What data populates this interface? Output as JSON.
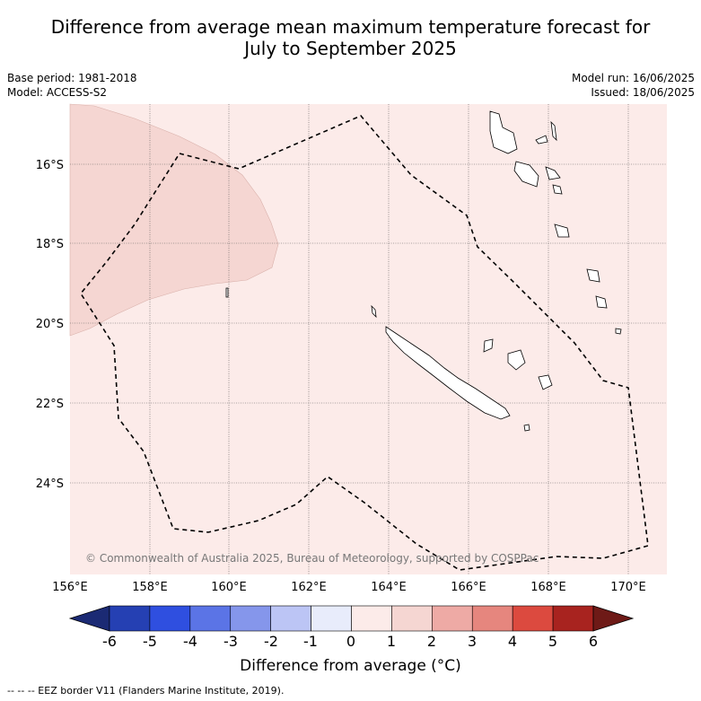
{
  "title_line1": "Difference from average mean maximum temperature forecast for",
  "title_line2": "July to September 2025",
  "base_period": "Base period: 1981-2018",
  "model": "Model: ACCESS-S2",
  "model_run": "Model run: 16/06/2025",
  "issued": "Issued: 18/06/2025",
  "lat_labels": [
    "16°S",
    "18°S",
    "20°S",
    "22°S",
    "24°S"
  ],
  "lon_labels": [
    "156°E",
    "158°E",
    "160°E",
    "162°E",
    "164°E",
    "166°E",
    "168°E",
    "170°E"
  ],
  "copyright": "© Commonwealth of Australia 2025, Bureau of Meteorology, supported by COSPPac",
  "colorbar": {
    "ticks": [
      "-6",
      "-5",
      "-4",
      "-3",
      "-2",
      "-1",
      "0",
      "1",
      "2",
      "3",
      "4",
      "5",
      "6"
    ],
    "colors": [
      "#1b2a74",
      "#2540b3",
      "#2f4fe0",
      "#5b74e6",
      "#8596eb",
      "#bcc5f5",
      "#e8ecfb",
      "#fcebe9",
      "#f5d6d2",
      "#eeaaa5",
      "#e6867e",
      "#dc4a3f",
      "#a8231f",
      "#6e1a17"
    ],
    "label": "Difference from average (°C)"
  },
  "map_colors": {
    "background": "#fcebe9",
    "anomaly_1_2": "#f5d6d2",
    "land_outline": "#000000"
  },
  "footer": "-- -- -- EEZ border V11 (Flanders Marine Institute, 2019)."
}
